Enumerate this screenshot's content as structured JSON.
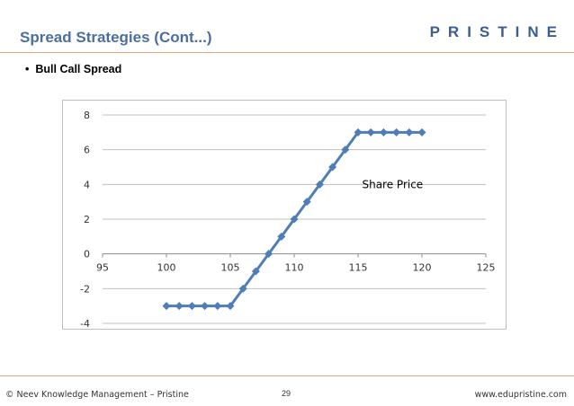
{
  "slide": {
    "title": "Spread Strategies (Cont...)",
    "brand": "PRISTINE",
    "bullet": "•",
    "subtitle": "Bull Call Spread",
    "page_number": "29",
    "footer_left": "© Neev Knowledge Management – Pristine",
    "footer_right": "www.edupristine.com"
  },
  "colors": {
    "title": "#4a6fa0",
    "series": "#4f7db8",
    "gridline": "#bfbfbf",
    "rule": "#e0a878"
  },
  "chart_data": {
    "type": "line",
    "title": "",
    "annotation": "Share Price",
    "xlim": [
      95,
      125
    ],
    "ylim": [
      -4,
      8
    ],
    "x_ticks": [
      95,
      100,
      105,
      110,
      115,
      120,
      125
    ],
    "y_ticks": [
      8,
      6,
      4,
      2,
      0,
      -2,
      -4
    ],
    "grid": true,
    "legend": "none",
    "series": [
      {
        "x": [
          100,
          101,
          102,
          103,
          104,
          105,
          106,
          107,
          108,
          109,
          110,
          111,
          112,
          113,
          114,
          115,
          116,
          117,
          118,
          119,
          120
        ],
        "y": [
          -3,
          -3,
          -3,
          -3,
          -3,
          -3,
          -2,
          -1,
          0,
          1,
          2,
          3,
          4,
          5,
          6,
          7,
          7,
          7,
          7,
          7,
          7
        ]
      }
    ]
  }
}
